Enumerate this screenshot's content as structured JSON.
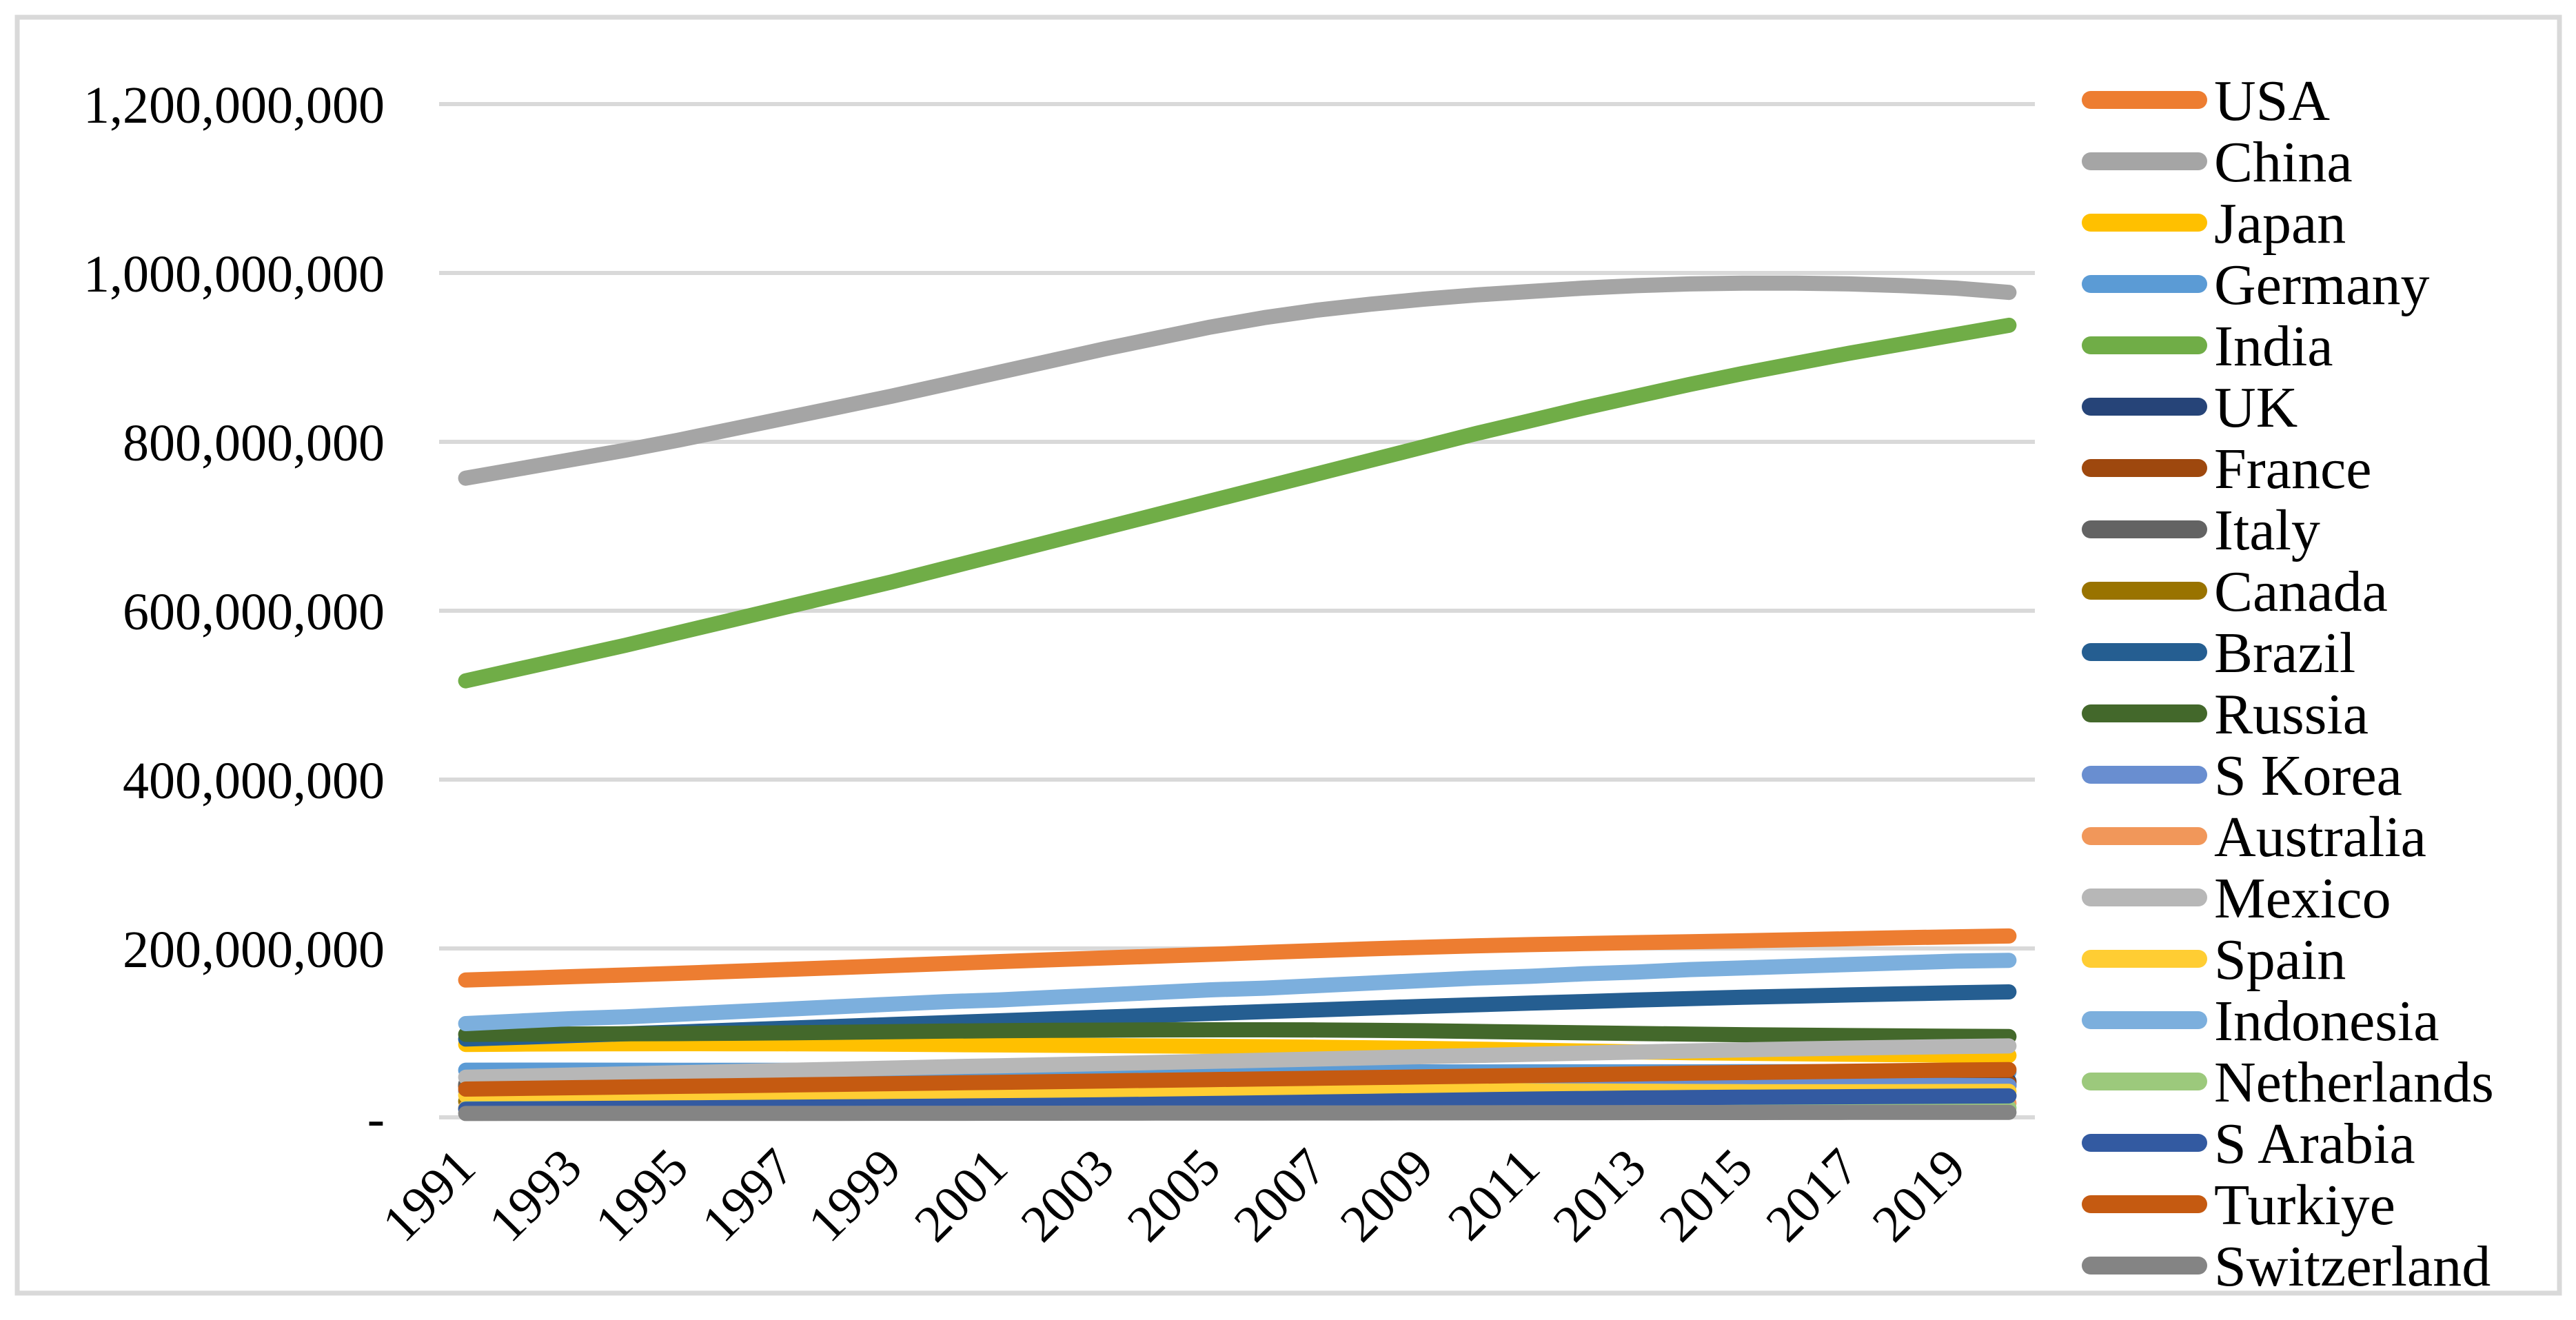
{
  "frame": {
    "background_color": "#FFFFFF",
    "border_color": "#D9D9D9",
    "gridline_color": "#D9D9D9"
  },
  "y_axis": {
    "tick_labels": [
      "1,200,000,000",
      "1,000,000,000",
      "800,000,000",
      "600,000,000",
      "400,000,000",
      "200,000,000",
      "-"
    ],
    "tick_values_millions": [
      1200,
      1000,
      800,
      600,
      400,
      200,
      0
    ]
  },
  "x_axis": {
    "tick_labels": [
      "1991",
      "1993",
      "1995",
      "1997",
      "1999",
      "2001",
      "2003",
      "2005",
      "2007",
      "2009",
      "2011",
      "2013",
      "2015",
      "2017",
      "2019"
    ]
  },
  "chart_data": {
    "type": "line",
    "title": "",
    "xlabel": "",
    "ylabel": "",
    "value_unit": "persons (values stored in millions)",
    "x": [
      1991,
      1992,
      1993,
      1994,
      1995,
      1996,
      1997,
      1998,
      1999,
      2000,
      2001,
      2002,
      2003,
      2004,
      2005,
      2006,
      2007,
      2008,
      2009,
      2010,
      2011,
      2012,
      2013,
      2014,
      2015,
      2016,
      2017,
      2018,
      2019,
      2020
    ],
    "ylim_millions": [
      0,
      1200
    ],
    "grid": "horizontal gridlines every 200,000,000",
    "legend_position": "right",
    "series": [
      {
        "name": "USA",
        "color": "#ED7D31",
        "values": [
          162.6,
          164.6,
          166.6,
          168.6,
          170.6,
          172.8,
          175.1,
          177.4,
          179.7,
          182.0,
          184.4,
          186.6,
          188.7,
          190.9,
          193.1,
          195.3,
          197.5,
          199.6,
          201.5,
          203.2,
          204.6,
          205.8,
          206.9,
          208.0,
          209.1,
          210.3,
          211.5,
          212.7,
          213.8,
          214.8
        ]
      },
      {
        "name": "China",
        "color": "#A5A5A5",
        "values": [
          757,
          768,
          779,
          790,
          802,
          815,
          828,
          841,
          854,
          868,
          882,
          896,
          910,
          923,
          936,
          947,
          956,
          963,
          969,
          974,
          978,
          982,
          985,
          987,
          988,
          988,
          987,
          985,
          982,
          977
        ]
      },
      {
        "name": "Japan",
        "color": "#FFC000",
        "values": [
          86.4,
          86.8,
          87.0,
          87.2,
          87.3,
          87.2,
          87.1,
          86.9,
          86.6,
          86.2,
          85.8,
          85.4,
          85.0,
          84.6,
          84.2,
          83.7,
          83.1,
          82.4,
          81.6,
          80.7,
          79.6,
          78.5,
          77.5,
          76.6,
          75.9,
          75.3,
          74.7,
          74.2,
          73.7,
          73.2
        ]
      },
      {
        "name": "Germany",
        "color": "#5B9BD5",
        "values": [
          55.8,
          55.9,
          55.9,
          55.8,
          55.7,
          55.7,
          55.7,
          55.6,
          55.6,
          55.7,
          55.7,
          55.6,
          55.5,
          55.3,
          55.0,
          54.7,
          54.4,
          54.1,
          53.9,
          53.8,
          53.9,
          53.9,
          53.9,
          53.9,
          54.0,
          54.1,
          54.1,
          54.0,
          53.9,
          53.7
        ]
      },
      {
        "name": "India",
        "color": "#70AD47",
        "values": [
          517,
          531,
          545,
          559,
          574,
          589,
          604,
          619,
          634,
          650,
          666,
          682,
          698,
          714,
          730,
          746,
          762,
          778,
          794,
          810,
          825,
          840,
          854,
          868,
          881,
          893,
          905,
          916,
          927,
          938
        ]
      },
      {
        "name": "UK",
        "color": "#264478",
        "values": [
          37.1,
          37.1,
          37.2,
          37.3,
          37.4,
          37.5,
          37.7,
          37.9,
          38.1,
          38.3,
          38.6,
          38.9,
          39.2,
          39.6,
          40.0,
          40.4,
          40.7,
          41.0,
          41.2,
          41.4,
          41.6,
          41.7,
          41.8,
          41.9,
          42.0,
          42.2,
          42.3,
          42.5,
          42.7,
          42.8
        ]
      },
      {
        "name": "France",
        "color": "#9E480E",
        "values": [
          37.4,
          37.6,
          37.7,
          37.8,
          37.9,
          38.0,
          38.1,
          38.3,
          38.5,
          38.8,
          39.1,
          39.4,
          39.7,
          40.0,
          40.2,
          40.4,
          40.6,
          40.7,
          40.8,
          40.8,
          40.8,
          40.7,
          40.7,
          40.7,
          40.7,
          40.7,
          40.7,
          40.7,
          40.8,
          40.9
        ]
      },
      {
        "name": "Italy",
        "color": "#636363",
        "values": [
          39.2,
          39.2,
          39.1,
          39.1,
          39.0,
          38.9,
          38.8,
          38.7,
          38.6,
          38.6,
          38.5,
          38.4,
          38.5,
          38.7,
          38.8,
          38.8,
          38.8,
          38.9,
          39.0,
          39.1,
          39.0,
          38.8,
          38.8,
          38.9,
          38.8,
          38.6,
          38.4,
          38.2,
          37.9,
          37.6
        ]
      },
      {
        "name": "Canada",
        "color": "#997300",
        "values": [
          19.0,
          19.2,
          19.4,
          19.7,
          19.9,
          20.1,
          20.4,
          20.6,
          20.8,
          21.1,
          21.4,
          21.7,
          22.0,
          22.2,
          22.5,
          22.8,
          23.1,
          23.4,
          23.7,
          23.9,
          24.1,
          24.3,
          24.5,
          24.6,
          24.7,
          24.9,
          25.1,
          25.4,
          25.7,
          25.9
        ]
      },
      {
        "name": "Brazil",
        "color": "#255E91",
        "values": [
          92.7,
          94.8,
          96.9,
          99.0,
          101.1,
          103.3,
          105.5,
          107.7,
          109.9,
          112.1,
          114.3,
          116.5,
          118.7,
          120.9,
          123.1,
          125.2,
          127.3,
          129.4,
          131.4,
          133.4,
          135.3,
          137.1,
          138.9,
          140.6,
          142.2,
          143.6,
          145.0,
          146.3,
          147.5,
          148.6
        ]
      },
      {
        "name": "Russia",
        "color": "#43682B",
        "values": [
          98.3,
          98.5,
          98.7,
          98.9,
          99.2,
          99.6,
          100.1,
          100.7,
          101.4,
          102.1,
          102.6,
          103.0,
          103.3,
          103.6,
          103.7,
          103.7,
          103.5,
          103.1,
          102.5,
          101.7,
          100.9,
          100.1,
          99.3,
          98.6,
          97.9,
          97.3,
          96.8,
          96.4,
          96.0,
          95.7
        ]
      },
      {
        "name": "S Korea",
        "color": "#698ED0",
        "values": [
          30.6,
          31.0,
          31.4,
          31.8,
          32.2,
          32.6,
          33.0,
          33.4,
          33.7,
          34.0,
          34.3,
          34.5,
          34.7,
          34.9,
          35.1,
          35.3,
          35.6,
          35.9,
          36.2,
          36.5,
          36.8,
          37.1,
          37.3,
          37.5,
          37.6,
          37.7,
          37.8,
          37.8,
          37.7,
          37.5
        ]
      },
      {
        "name": "Australia",
        "color": "#F1975A",
        "values": [
          11.4,
          11.5,
          11.7,
          11.8,
          12.0,
          12.2,
          12.3,
          12.5,
          12.6,
          12.8,
          13.0,
          13.2,
          13.4,
          13.6,
          13.8,
          14.1,
          14.4,
          14.7,
          14.9,
          15.1,
          15.3,
          15.5,
          15.7,
          15.9,
          16.0,
          16.2,
          16.4,
          16.6,
          16.7,
          16.8
        ]
      },
      {
        "name": "Mexico",
        "color": "#B7B7B7",
        "values": [
          47.5,
          48.8,
          50.1,
          51.4,
          52.8,
          54.2,
          55.6,
          57.0,
          58.4,
          59.8,
          61.1,
          62.4,
          63.7,
          65.0,
          66.3,
          67.7,
          69.1,
          70.5,
          71.9,
          73.3,
          74.7,
          76.1,
          77.4,
          78.7,
          79.9,
          81.0,
          82.0,
          82.9,
          83.8,
          84.6
        ]
      },
      {
        "name": "Spain",
        "color": "#FFCD33",
        "values": [
          26.2,
          26.4,
          26.6,
          26.8,
          27.0,
          27.2,
          27.4,
          27.6,
          27.8,
          28.1,
          28.5,
          28.9,
          29.4,
          29.9,
          30.3,
          30.7,
          31.1,
          31.4,
          31.5,
          31.5,
          31.4,
          31.2,
          30.9,
          30.6,
          30.4,
          30.3,
          30.3,
          30.4,
          30.6,
          30.8
        ]
      },
      {
        "name": "Indonesia",
        "color": "#7CAFDD",
        "values": [
          111,
          114,
          117,
          119,
          122,
          125,
          128,
          131,
          134,
          137,
          139,
          142,
          145,
          148,
          151,
          153,
          156,
          159,
          162,
          165,
          167,
          170,
          172,
          175,
          177,
          179,
          181,
          183,
          185,
          186
        ]
      },
      {
        "name": "Netherlands",
        "color": "#9CC97C",
        "values": [
          10.3,
          10.35,
          10.4,
          10.45,
          10.5,
          10.55,
          10.6,
          10.65,
          10.7,
          10.72,
          10.75,
          10.78,
          10.8,
          10.85,
          10.88,
          10.9,
          10.92,
          10.95,
          10.98,
          11.0,
          11.0,
          11.0,
          11.0,
          11.05,
          11.1,
          11.1,
          11.15,
          11.2,
          11.25,
          11.3
        ]
      },
      {
        "name": "S Arabia",
        "color": "#335AA1",
        "values": [
          9.6,
          10.0,
          10.4,
          10.8,
          11.2,
          11.6,
          12.0,
          12.4,
          12.8,
          13.3,
          13.8,
          14.3,
          14.9,
          15.6,
          16.4,
          17.2,
          18.1,
          19.0,
          19.9,
          20.8,
          21.6,
          22.3,
          22.9,
          23.4,
          23.8,
          24.2,
          24.5,
          24.8,
          25.1,
          25.4
        ]
      },
      {
        "name": "Turkiye",
        "color": "#C55A11",
        "values": [
          33.5,
          34.3,
          35.1,
          35.9,
          36.7,
          37.5,
          38.3,
          39.1,
          39.9,
          40.7,
          41.5,
          42.3,
          43.1,
          43.9,
          44.7,
          45.5,
          46.3,
          47.1,
          47.9,
          48.7,
          49.6,
          50.5,
          51.4,
          52.3,
          53.1,
          53.9,
          54.6,
          55.3,
          56.0,
          56.6
        ]
      },
      {
        "name": "Switzerland",
        "color": "#848484",
        "values": [
          4.6,
          4.62,
          4.64,
          4.66,
          4.68,
          4.7,
          4.73,
          4.76,
          4.8,
          4.84,
          4.88,
          4.93,
          4.98,
          5.03,
          5.08,
          5.13,
          5.19,
          5.26,
          5.33,
          5.4,
          5.47,
          5.54,
          5.61,
          5.68,
          5.74,
          5.79,
          5.84,
          5.88,
          5.92,
          5.96
        ]
      }
    ]
  }
}
